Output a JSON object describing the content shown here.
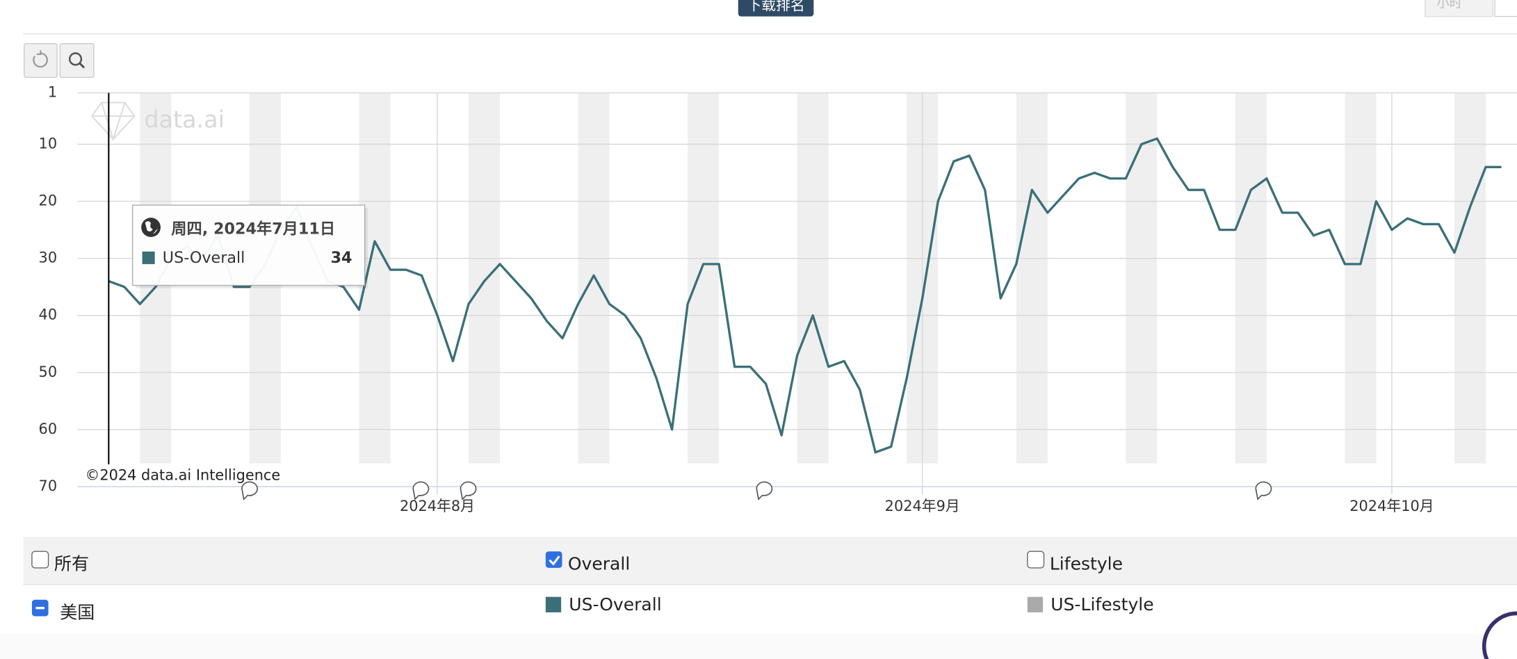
{
  "header": {
    "button": "下载排名",
    "right_button": "小时"
  },
  "chart_data": {
    "type": "line",
    "watermark": "data.ai",
    "copyright": "©2024 data.ai Intelligence",
    "x": [
      "2024-07-11",
      "2024-07-12",
      "2024-07-13",
      "2024-07-14",
      "2024-07-15",
      "2024-07-16",
      "2024-07-17",
      "2024-07-18",
      "2024-07-19",
      "2024-07-20",
      "2024-07-21",
      "2024-07-22",
      "2024-07-23",
      "2024-07-24",
      "2024-07-25",
      "2024-07-26",
      "2024-07-27",
      "2024-07-28",
      "2024-07-29",
      "2024-07-30",
      "2024-07-31",
      "2024-08-01",
      "2024-08-02",
      "2024-08-03",
      "2024-08-04",
      "2024-08-05",
      "2024-08-06",
      "2024-08-07",
      "2024-08-08",
      "2024-08-09",
      "2024-08-10",
      "2024-08-11",
      "2024-08-12",
      "2024-08-13",
      "2024-08-14",
      "2024-08-15",
      "2024-08-16",
      "2024-08-17",
      "2024-08-18",
      "2024-08-19",
      "2024-08-20",
      "2024-08-21",
      "2024-08-22",
      "2024-08-23",
      "2024-08-24",
      "2024-08-25",
      "2024-08-26",
      "2024-08-27",
      "2024-08-28",
      "2024-08-29",
      "2024-08-30",
      "2024-08-31",
      "2024-09-01",
      "2024-09-02",
      "2024-09-03",
      "2024-09-04",
      "2024-09-05",
      "2024-09-06",
      "2024-09-07",
      "2024-09-08",
      "2024-09-09",
      "2024-09-10",
      "2024-09-11",
      "2024-09-12",
      "2024-09-13",
      "2024-09-14",
      "2024-09-15",
      "2024-09-16",
      "2024-09-17",
      "2024-09-18",
      "2024-09-19",
      "2024-09-20",
      "2024-09-21",
      "2024-09-22",
      "2024-09-23",
      "2024-09-24",
      "2024-09-25",
      "2024-09-26",
      "2024-09-27",
      "2024-09-28",
      "2024-09-29",
      "2024-09-30",
      "2024-10-01",
      "2024-10-02",
      "2024-10-03",
      "2024-10-04",
      "2024-10-05",
      "2024-10-06",
      "2024-10-07",
      "2024-10-08"
    ],
    "series": [
      {
        "name": "US-Overall",
        "color": "#3b6f78",
        "values": [
          34,
          35,
          38,
          35,
          30,
          28,
          30,
          26,
          35,
          35,
          31,
          25,
          21,
          28,
          34,
          35,
          39,
          27,
          32,
          32,
          33,
          40,
          48,
          38,
          34,
          31,
          34,
          37,
          41,
          44,
          38,
          33,
          38,
          40,
          44,
          51,
          60,
          38,
          31,
          31,
          49,
          49,
          52,
          61,
          47,
          40,
          49,
          48,
          53,
          64,
          63,
          51,
          37,
          20,
          13,
          12,
          18,
          37,
          31,
          18,
          22,
          19,
          16,
          15,
          16,
          16,
          10,
          9,
          14,
          18,
          18,
          25,
          25,
          18,
          16,
          22,
          22,
          26,
          25,
          31,
          31,
          20,
          25,
          23,
          24,
          24,
          29,
          21,
          14,
          14
        ]
      }
    ],
    "xlim": [
      "2024-07-09",
      "2024-10-09"
    ],
    "xticks": [
      {
        "value": "2024-08-01",
        "label": "2024年8月"
      },
      {
        "value": "2024-09-01",
        "label": "2024年9月"
      },
      {
        "value": "2024-10-01",
        "label": "2024年10月"
      }
    ],
    "ylim": [
      1,
      70
    ],
    "yticks": [
      1,
      10,
      20,
      30,
      40,
      50,
      60,
      70
    ],
    "y_reversed": true,
    "grid": true,
    "tooltip": {
      "title": "周四, 2024年7月11日"
    }
  },
  "panel": {
    "row1": [
      {
        "label": "所有",
        "checked": false
      },
      {
        "label": "Overall",
        "checked": true
      },
      {
        "label": "Lifestyle",
        "checked": false
      }
    ],
    "row2": {
      "label": "美国",
      "lifestyle": {
        "name": "US-Lifestyle",
        "color": "#aaaaaa"
      }
    }
  }
}
